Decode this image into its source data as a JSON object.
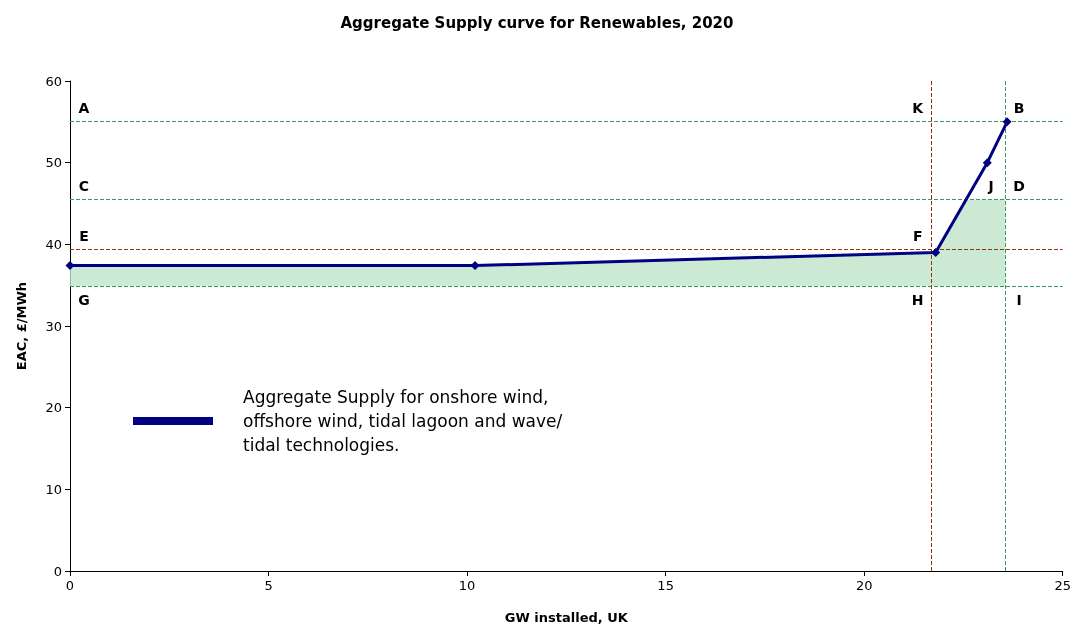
{
  "chart_data": {
    "type": "line",
    "title": "Aggregate Supply curve for Renewables, 2020",
    "xlabel": "GW installed, UK",
    "ylabel": "EAC, £/MWh",
    "xlim": [
      0,
      25
    ],
    "xticks": [
      0,
      5,
      10,
      15,
      20,
      25
    ],
    "ylim": [
      0,
      60
    ],
    "yticks": [
      0,
      10,
      20,
      30,
      40,
      50,
      60
    ],
    "grid": false,
    "legend": "left",
    "line_style": "solid",
    "series": [
      {
        "type": "area",
        "color": "#bfe3c8",
        "x": [
          0,
          10.2,
          21.8,
          22.57,
          23.55
        ],
        "values": [
          37.4,
          37.4,
          39,
          45.5,
          45.5
        ]
      },
      {
        "name": "Aggregate Supply for onshore wind, offshore wind, tidal lagoon and wave/tidal technologies.",
        "color": "#000080",
        "marker": "diamond",
        "x": [
          0,
          10.2,
          21.8,
          23.1,
          23.6
        ],
        "values": [
          37.4,
          37.4,
          39,
          50,
          55
        ]
      }
    ],
    "ref_lines": [
      {
        "axis": "y",
        "value": 55.1,
        "color": "#339966",
        "line_style": "dashed"
      },
      {
        "axis": "y",
        "value": 45.5,
        "color": "#339966",
        "line_style": "dashed"
      },
      {
        "axis": "y",
        "value": 39.4,
        "color": "#993300",
        "line_style": "dashed"
      },
      {
        "axis": "y",
        "value": 34.9,
        "color": "#339966",
        "line_style": "dashed"
      },
      {
        "axis": "x",
        "value": 21.7,
        "color": "#993300",
        "line_style": "dashed"
      },
      {
        "axis": "x",
        "value": 23.55,
        "color": "#339966",
        "line_style": "dashed"
      }
    ],
    "annotations": [
      "A",
      "K",
      "B",
      "C",
      "J",
      "D",
      "E",
      "F",
      "G",
      "H",
      "I"
    ]
  }
}
